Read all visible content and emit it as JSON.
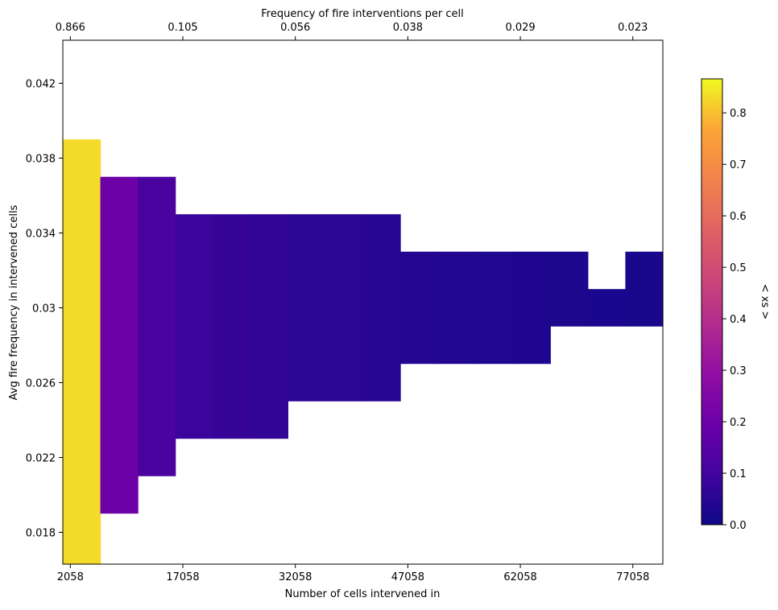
{
  "chart_data": {
    "type": "heatmap",
    "xlabel": "Number of cells intervened in",
    "ylabel": "Avg fire frequency in intervened cells",
    "top_xlabel": "Frequency of fire interventions per cell",
    "colorbar_label": "< xs >",
    "xlim": [
      1058,
      81058
    ],
    "ylim": [
      0.0163,
      0.0443
    ],
    "x_ticks": [
      2058,
      17058,
      32058,
      47058,
      62058,
      77058
    ],
    "x_tick_labels": [
      "2058",
      "17058",
      "32058",
      "47058",
      "62058",
      "77058"
    ],
    "y_ticks": [
      0.018,
      0.022,
      0.026,
      0.03,
      0.034,
      0.038,
      0.042
    ],
    "y_tick_labels": [
      "0.018",
      "0.022",
      "0.026",
      "0.03",
      "0.034",
      "0.038",
      "0.042"
    ],
    "top_ticks": [
      2058,
      17058,
      32058,
      47058,
      62058,
      77058
    ],
    "top_tick_labels": [
      "0.866",
      "0.105",
      "0.056",
      "0.038",
      "0.029",
      "0.023"
    ],
    "colorbar_ticks": [
      0.0,
      0.1,
      0.2,
      0.3,
      0.4,
      0.5,
      0.6,
      0.7,
      0.8
    ],
    "colorbar_tick_labels": [
      "0.0",
      "0.1",
      "0.2",
      "0.3",
      "0.4",
      "0.5",
      "0.6",
      "0.7",
      "0.8"
    ],
    "color_range": [
      0,
      0.866
    ],
    "colormap": "plasma",
    "cells": [
      {
        "x0": 1058,
        "x1": 6058,
        "y0": 0.0163,
        "y1": 0.039,
        "value": 0.83
      },
      {
        "x0": 6058,
        "x1": 11058,
        "y0": 0.019,
        "y1": 0.037,
        "value": 0.2
      },
      {
        "x0": 11058,
        "x1": 16058,
        "y0": 0.021,
        "y1": 0.037,
        "value": 0.12
      },
      {
        "x0": 16058,
        "x1": 21058,
        "y0": 0.023,
        "y1": 0.035,
        "value": 0.085
      },
      {
        "x0": 21058,
        "x1": 26058,
        "y0": 0.023,
        "y1": 0.035,
        "value": 0.075
      },
      {
        "x0": 26058,
        "x1": 31058,
        "y0": 0.023,
        "y1": 0.035,
        "value": 0.068
      },
      {
        "x0": 31058,
        "x1": 36058,
        "y0": 0.025,
        "y1": 0.035,
        "value": 0.058
      },
      {
        "x0": 36058,
        "x1": 41058,
        "y0": 0.025,
        "y1": 0.035,
        "value": 0.053
      },
      {
        "x0": 41058,
        "x1": 46058,
        "y0": 0.025,
        "y1": 0.035,
        "value": 0.048
      },
      {
        "x0": 46058,
        "x1": 51058,
        "y0": 0.027,
        "y1": 0.033,
        "value": 0.04
      },
      {
        "x0": 51058,
        "x1": 56058,
        "y0": 0.027,
        "y1": 0.033,
        "value": 0.037
      },
      {
        "x0": 56058,
        "x1": 61058,
        "y0": 0.027,
        "y1": 0.033,
        "value": 0.034
      },
      {
        "x0": 61058,
        "x1": 66058,
        "y0": 0.027,
        "y1": 0.033,
        "value": 0.031
      },
      {
        "x0": 66058,
        "x1": 71058,
        "y0": 0.029,
        "y1": 0.033,
        "value": 0.028
      },
      {
        "x0": 71058,
        "x1": 76058,
        "y0": 0.029,
        "y1": 0.031,
        "value": 0.026
      },
      {
        "x0": 76058,
        "x1": 81058,
        "y0": 0.029,
        "y1": 0.033,
        "value": 0.023
      }
    ]
  }
}
